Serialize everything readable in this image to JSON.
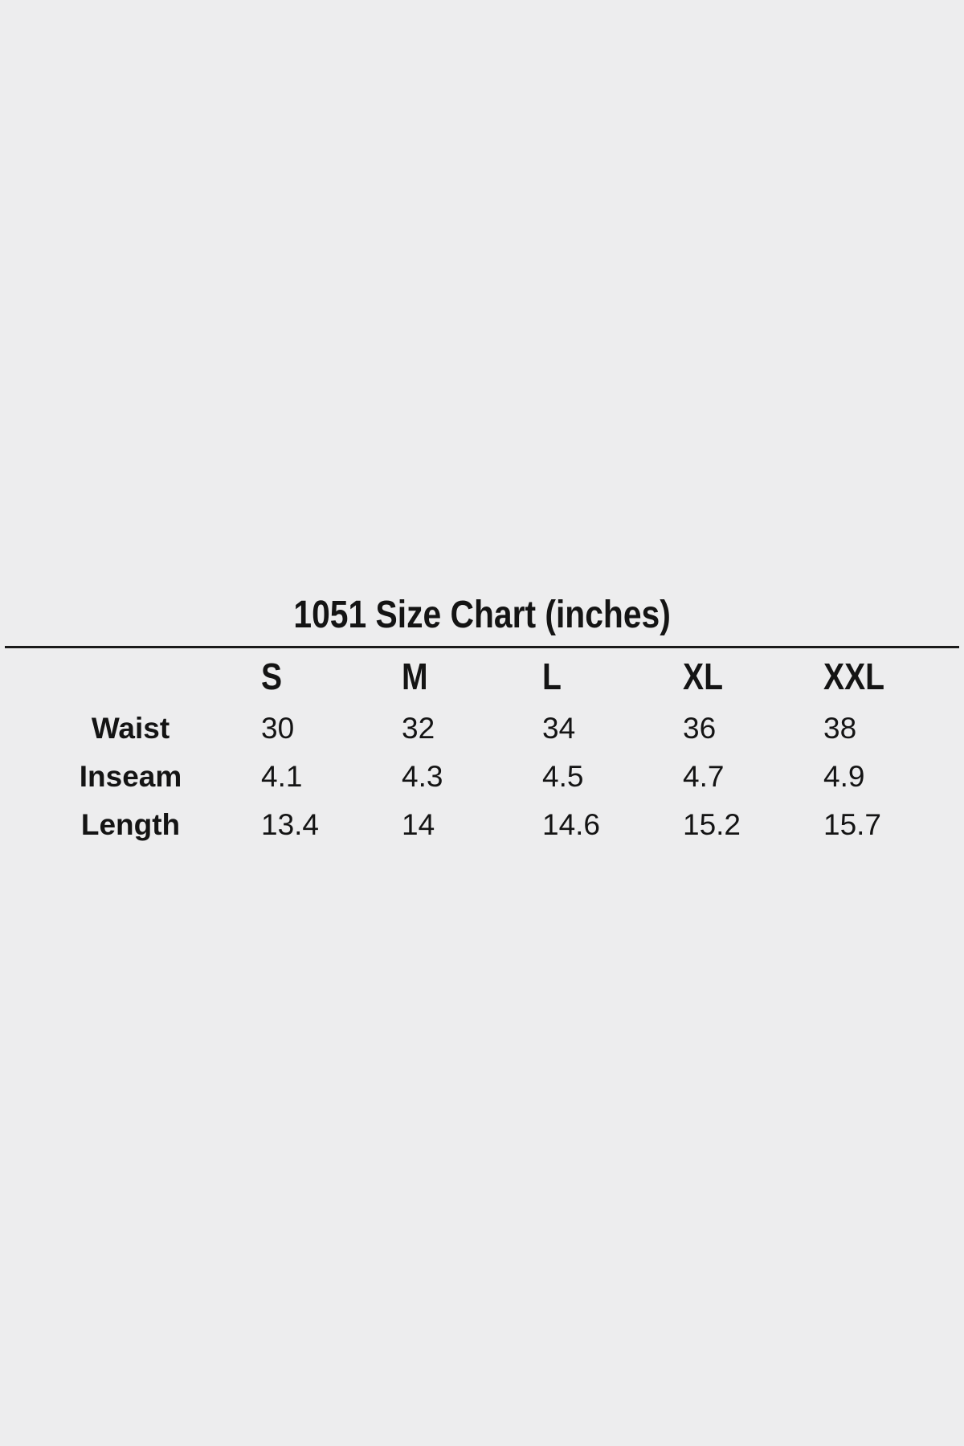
{
  "colors": {
    "background": "#ededee",
    "text": "#141414",
    "divider": "#1a1a1a"
  },
  "chart_data": {
    "type": "table",
    "title": "1051 Size Chart (inches)",
    "columns": [
      "S",
      "M",
      "L",
      "XL",
      "XXL"
    ],
    "rows": [
      {
        "label": "Waist",
        "values": [
          "30",
          "32",
          "34",
          "36",
          "38"
        ]
      },
      {
        "label": "Inseam",
        "values": [
          "4.1",
          "4.3",
          "4.5",
          "4.7",
          "4.9"
        ]
      },
      {
        "label": "Length",
        "values": [
          "13.4",
          "14",
          "14.6",
          "15.2",
          "15.7"
        ]
      }
    ],
    "layout": {
      "title_position": "top-center",
      "header_row": "bold",
      "first_column": "bold-centered",
      "value_alignment": "left",
      "grid": "off",
      "divider_under_title": true
    }
  }
}
